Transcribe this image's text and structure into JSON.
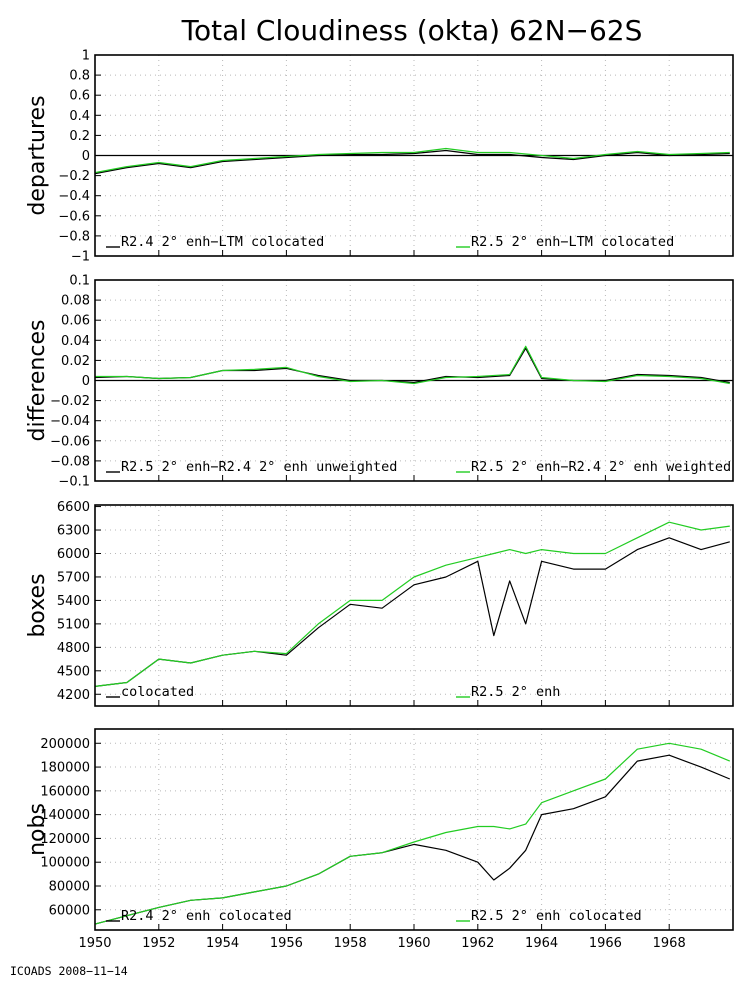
{
  "title": "Total Cloudiness (okta) 62N−62S",
  "footer": "ICOADS 2008−11−14",
  "x_axis": {
    "range": [
      1950,
      1970
    ],
    "ticks": [
      1950,
      1952,
      1954,
      1956,
      1958,
      1960,
      1962,
      1964,
      1966,
      1968
    ],
    "grid": true
  },
  "colors": {
    "series_a": "#000000",
    "series_b": "#22cc22"
  },
  "chart_data": [
    {
      "type": "line",
      "ylabel": "departures",
      "ylim": [
        -1,
        1
      ],
      "yticks": [
        1,
        0.8,
        0.6,
        0.4,
        0.2,
        0,
        -0.2,
        -0.4,
        -0.6,
        -0.8,
        -1
      ],
      "ytick_labels": [
        "1",
        "0.8",
        "0.6",
        "0.4",
        "0.2",
        "0",
        "−0.2",
        "−0.4",
        "−0.6",
        "−0.8",
        "−1"
      ],
      "zero_line": true,
      "legend": [
        {
          "name": "R2.4 2° enh−LTM colocated",
          "color": "#000000"
        },
        {
          "name": "R2.5 2° enh−LTM colocated",
          "color": "#22cc22"
        }
      ],
      "series": [
        {
          "name": "R2.4 2° enh−LTM colocated",
          "color": "#000000",
          "x": [
            1950.0,
            1951.0,
            1952.0,
            1953.0,
            1954.0,
            1955.0,
            1956.0,
            1957.0,
            1958.0,
            1959.0,
            1960.0,
            1961.0,
            1962.0,
            1963.0,
            1964.0,
            1965.0,
            1966.0,
            1967.0,
            1968.0,
            1969.0,
            1969.9
          ],
          "y": [
            -0.18,
            -0.12,
            -0.08,
            -0.12,
            -0.06,
            -0.04,
            -0.02,
            0.0,
            0.01,
            0.01,
            0.02,
            0.05,
            0.01,
            0.01,
            -0.02,
            -0.04,
            0.0,
            0.03,
            0.0,
            0.01,
            0.02
          ]
        },
        {
          "name": "R2.5 2° enh−LTM colocated",
          "color": "#22cc22",
          "x": [
            1950.0,
            1951.0,
            1952.0,
            1953.0,
            1954.0,
            1955.0,
            1956.0,
            1957.0,
            1958.0,
            1959.0,
            1960.0,
            1961.0,
            1962.0,
            1963.0,
            1964.0,
            1965.0,
            1966.0,
            1967.0,
            1968.0,
            1969.0,
            1969.9
          ],
          "y": [
            -0.17,
            -0.11,
            -0.07,
            -0.11,
            -0.05,
            -0.03,
            -0.01,
            0.01,
            0.02,
            0.03,
            0.03,
            0.07,
            0.03,
            0.03,
            0.0,
            -0.03,
            0.01,
            0.04,
            0.01,
            0.02,
            0.03
          ]
        }
      ]
    },
    {
      "type": "line",
      "ylabel": "differences",
      "ylim": [
        -0.1,
        0.1
      ],
      "yticks": [
        0.1,
        0.08,
        0.06,
        0.04,
        0.02,
        0,
        -0.02,
        -0.04,
        -0.06,
        -0.08,
        -0.1
      ],
      "ytick_labels": [
        "0.1",
        "0.08",
        "0.06",
        "0.04",
        "0.02",
        "0",
        "−0.02",
        "−0.04",
        "−0.06",
        "−0.08",
        "−0.1"
      ],
      "zero_line": true,
      "legend": [
        {
          "name": "R2.5 2° enh−R2.4 2° enh unweighted",
          "color": "#000000"
        },
        {
          "name": "R2.5 2° enh−R2.4 2° enh weighted",
          "color": "#22cc22"
        }
      ],
      "series": [
        {
          "name": "R2.5 2° enh−R2.4 2° enh unweighted",
          "color": "#000000",
          "x": [
            1950.0,
            1951.0,
            1952.0,
            1953.0,
            1954.0,
            1955.0,
            1956.0,
            1957.0,
            1958.0,
            1959.0,
            1960.0,
            1961.0,
            1962.0,
            1963.0,
            1963.5,
            1964.0,
            1965.0,
            1966.0,
            1967.0,
            1968.0,
            1969.0,
            1969.9
          ],
          "y": [
            0.003,
            0.004,
            0.002,
            0.003,
            0.01,
            0.01,
            0.012,
            0.005,
            0.0,
            0.0,
            -0.002,
            0.004,
            0.003,
            0.005,
            0.032,
            0.002,
            0.0,
            0.0,
            0.006,
            0.005,
            0.003,
            -0.002
          ]
        },
        {
          "name": "R2.5 2° enh−R2.4 2° enh weighted",
          "color": "#22cc22",
          "x": [
            1950.0,
            1951.0,
            1952.0,
            1953.0,
            1954.0,
            1955.0,
            1956.0,
            1957.0,
            1958.0,
            1959.0,
            1960.0,
            1961.0,
            1962.0,
            1963.0,
            1963.5,
            1964.0,
            1965.0,
            1966.0,
            1967.0,
            1968.0,
            1969.0,
            1969.9
          ],
          "y": [
            0.004,
            0.004,
            0.002,
            0.003,
            0.01,
            0.011,
            0.013,
            0.004,
            -0.001,
            0.0,
            -0.003,
            0.003,
            0.004,
            0.006,
            0.034,
            0.003,
            0.0,
            -0.001,
            0.005,
            0.004,
            0.002,
            -0.003
          ]
        }
      ]
    },
    {
      "type": "line",
      "ylabel": "boxes",
      "ylim": [
        4050,
        6620
      ],
      "yticks": [
        6600,
        6300,
        6000,
        5700,
        5400,
        5100,
        4800,
        4500,
        4200
      ],
      "ytick_labels": [
        "6600",
        "6300",
        "6000",
        "5700",
        "5400",
        "5100",
        "4800",
        "4500",
        "4200"
      ],
      "zero_line": false,
      "legend": [
        {
          "name": "colocated",
          "color": "#000000"
        },
        {
          "name": "R2.5 2° enh",
          "color": "#22cc22"
        }
      ],
      "series": [
        {
          "name": "colocated",
          "color": "#000000",
          "x": [
            1950.0,
            1951.0,
            1952.0,
            1953.0,
            1954.0,
            1955.0,
            1956.0,
            1957.0,
            1958.0,
            1959.0,
            1960.0,
            1961.0,
            1962.0,
            1962.5,
            1963.0,
            1963.5,
            1964.0,
            1965.0,
            1966.0,
            1967.0,
            1968.0,
            1969.0,
            1969.9
          ],
          "y": [
            4300,
            4350,
            4650,
            4600,
            4700,
            4750,
            4700,
            5050,
            5350,
            5300,
            5600,
            5700,
            5900,
            4950,
            5650,
            5100,
            5900,
            5800,
            5800,
            6050,
            6200,
            6050,
            6150
          ]
        },
        {
          "name": "R2.5 2° enh",
          "color": "#22cc22",
          "x": [
            1950.0,
            1951.0,
            1952.0,
            1953.0,
            1954.0,
            1955.0,
            1956.0,
            1957.0,
            1958.0,
            1959.0,
            1960.0,
            1961.0,
            1962.0,
            1962.5,
            1963.0,
            1963.5,
            1964.0,
            1965.0,
            1966.0,
            1967.0,
            1968.0,
            1969.0,
            1969.9
          ],
          "y": [
            4300,
            4350,
            4650,
            4600,
            4700,
            4750,
            4720,
            5100,
            5400,
            5400,
            5700,
            5850,
            5950,
            6000,
            6050,
            6000,
            6050,
            6000,
            6000,
            6200,
            6400,
            6300,
            6350
          ]
        }
      ]
    },
    {
      "type": "line",
      "ylabel": "nobs",
      "ylim": [
        43000,
        212000
      ],
      "yticks": [
        200000,
        180000,
        160000,
        140000,
        120000,
        100000,
        80000,
        60000
      ],
      "ytick_labels": [
        "200000",
        "180000",
        "160000",
        "140000",
        "120000",
        "100000",
        "80000",
        "60000"
      ],
      "zero_line": false,
      "legend": [
        {
          "name": "R2.4 2° enh colocated",
          "color": "#000000"
        },
        {
          "name": "R2.5 2° enh colocated",
          "color": "#22cc22"
        }
      ],
      "series": [
        {
          "name": "R2.4 2° enh colocated",
          "color": "#000000",
          "x": [
            1950.0,
            1951.0,
            1952.0,
            1953.0,
            1954.0,
            1955.0,
            1956.0,
            1957.0,
            1958.0,
            1959.0,
            1960.0,
            1961.0,
            1962.0,
            1962.5,
            1963.0,
            1963.5,
            1964.0,
            1965.0,
            1966.0,
            1967.0,
            1968.0,
            1969.0,
            1969.9
          ],
          "y": [
            48000,
            55000,
            62000,
            68000,
            70000,
            75000,
            80000,
            90000,
            105000,
            108000,
            115000,
            110000,
            100000,
            85000,
            95000,
            110000,
            140000,
            145000,
            155000,
            185000,
            190000,
            180000,
            170000
          ]
        },
        {
          "name": "R2.5 2° enh colocated",
          "color": "#22cc22",
          "x": [
            1950.0,
            1951.0,
            1952.0,
            1953.0,
            1954.0,
            1955.0,
            1956.0,
            1957.0,
            1958.0,
            1959.0,
            1960.0,
            1961.0,
            1962.0,
            1962.5,
            1963.0,
            1963.5,
            1964.0,
            1965.0,
            1966.0,
            1967.0,
            1968.0,
            1969.0,
            1969.9
          ],
          "y": [
            48000,
            55000,
            62000,
            68000,
            70000,
            75000,
            80000,
            90000,
            105000,
            108000,
            117000,
            125000,
            130000,
            130000,
            128000,
            132000,
            150000,
            160000,
            170000,
            195000,
            200000,
            195000,
            185000
          ]
        }
      ]
    }
  ]
}
